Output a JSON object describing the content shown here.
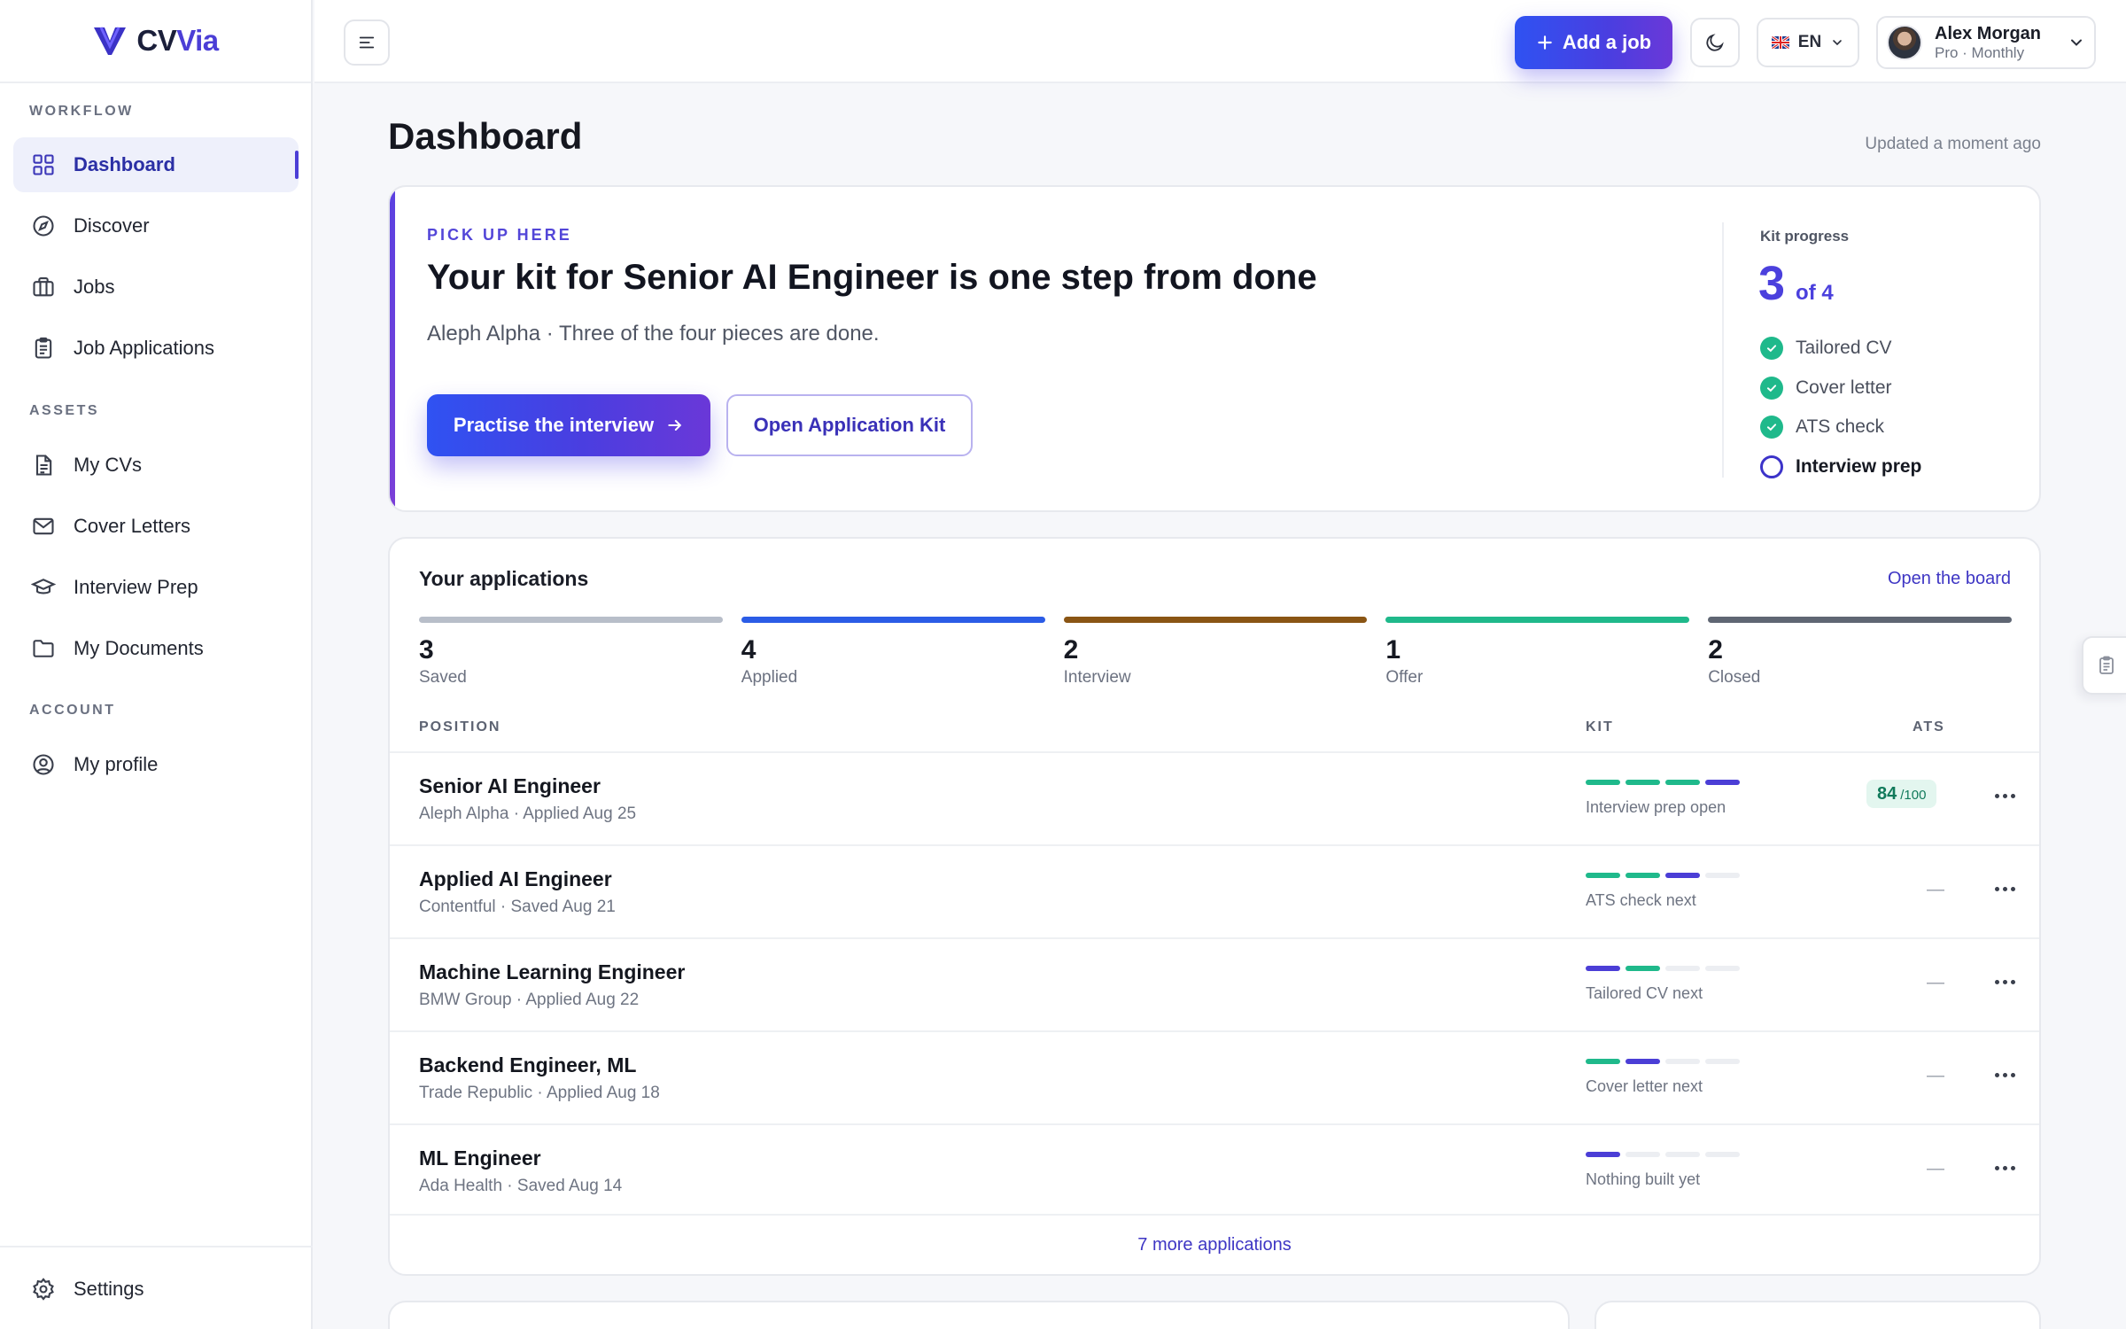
{
  "brand": {
    "name_main": "CV",
    "name_accent": "Via"
  },
  "sidebar": {
    "sections": [
      "WORKFLOW",
      "ASSETS",
      "ACCOUNT"
    ],
    "items": [
      {
        "label": "Dashboard",
        "icon": "grid-icon",
        "active": true
      },
      {
        "label": "Discover",
        "icon": "compass-icon"
      },
      {
        "label": "Jobs",
        "icon": "briefcase-icon"
      },
      {
        "label": "Job Applications",
        "icon": "clipboard-icon"
      },
      {
        "label": "My CVs",
        "icon": "document-icon"
      },
      {
        "label": "Cover Letters",
        "icon": "mail-icon"
      },
      {
        "label": "Interview Prep",
        "icon": "graduation-cap-icon"
      },
      {
        "label": "My Documents",
        "icon": "folder-icon"
      },
      {
        "label": "My profile",
        "icon": "user-circle-icon"
      }
    ],
    "settings_label": "Settings"
  },
  "topbar": {
    "add_job_label": "Add a job",
    "language": "EN",
    "user": {
      "name": "Alex Morgan",
      "plan": "Pro · Monthly"
    }
  },
  "page": {
    "title": "Dashboard",
    "updated": "Updated a moment ago"
  },
  "kit": {
    "eyebrow": "PICK UP HERE",
    "title": "Your kit for Senior AI Engineer is one step from done",
    "subtitle": "Aleph Alpha · Three of the four pieces are done.",
    "primary_button": "Practise the interview",
    "secondary_button": "Open Application Kit",
    "progress_label": "Kit progress",
    "progress_done": "3",
    "progress_total": "of 4",
    "steps": [
      {
        "label": "Tailored CV",
        "done": true
      },
      {
        "label": "Cover letter",
        "done": true
      },
      {
        "label": "ATS check",
        "done": true
      },
      {
        "label": "Interview prep",
        "done": false
      }
    ]
  },
  "applications": {
    "title": "Your applications",
    "board_link": "Open the board",
    "stages": [
      {
        "count": "3",
        "label": "Saved",
        "color": "#b8bec9"
      },
      {
        "count": "4",
        "label": "Applied",
        "color": "#2b5ce6"
      },
      {
        "count": "2",
        "label": "Interview",
        "color": "#8a5514"
      },
      {
        "count": "1",
        "label": "Offer",
        "color": "#1fb98b"
      },
      {
        "count": "2",
        "label": "Closed",
        "color": "#5f6673"
      }
    ],
    "columns": {
      "position": "POSITION",
      "kit": "KIT",
      "ats": "ATS"
    },
    "rows": [
      {
        "title": "Senior AI Engineer",
        "meta": "Aleph Alpha · Applied Aug 25",
        "segments": [
          "done",
          "done",
          "done",
          "next"
        ],
        "kit_note": "Interview prep open",
        "ats": "84",
        "ats_max": "/100"
      },
      {
        "title": "Applied AI Engineer",
        "meta": "Contentful · Saved Aug 21",
        "segments": [
          "done",
          "done",
          "next",
          "empty"
        ],
        "kit_note": "ATS check next",
        "ats": "—"
      },
      {
        "title": "Machine Learning Engineer",
        "meta": "BMW Group · Applied Aug 22",
        "segments": [
          "next",
          "done",
          "empty",
          "empty"
        ],
        "kit_note": "Tailored CV next",
        "ats": "—"
      },
      {
        "title": "Backend Engineer, ML",
        "meta": "Trade Republic · Applied Aug 18",
        "segments": [
          "done",
          "next",
          "empty",
          "empty"
        ],
        "kit_note": "Cover letter next",
        "ats": "—"
      },
      {
        "title": "ML Engineer",
        "meta": "Ada Health · Saved Aug 14",
        "segments": [
          "next",
          "empty",
          "empty",
          "empty"
        ],
        "kit_note": "Nothing built yet",
        "ats": "—"
      }
    ],
    "more_link": "7 more applications"
  },
  "colors": {
    "accent": "#4b3ed6",
    "success": "#1fb98b",
    "primary_gradient_start": "#2f52f2"
  }
}
